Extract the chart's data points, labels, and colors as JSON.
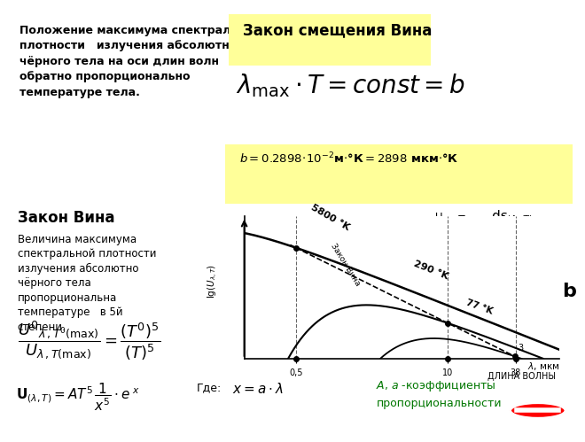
{
  "title": "Закон смещения Вина",
  "bg_top_left": "#FFFF99",
  "bg_top_right": "#AADDFF",
  "bg_mid_left": "#CCFFCC",
  "bg_ratio": "#AADDFF",
  "bg_bottom_left": "#AADDFF",
  "bg_bottom_right": "#FFCCBB",
  "bg_graph": "#FFFFFF",
  "text_top_left": "Положение максимума спектральной\nплотности   излучения абсолютно\nчёрного тела на оси длин волн\nобратно пропорционально\nтемпературе тела.",
  "text_zakon_vina": "Закон Вина",
  "text_mid_left": "Величина максимума\nспектральной плотности\nизлучения абсолютно\nчёрного тела\nпропорциональна\nтемпературе   в 5й\nстепени.",
  "graph_curves_T": [
    5800,
    290,
    77
  ],
  "graph_xmarks": [
    0.5,
    10,
    38
  ],
  "C2": 2898.0
}
